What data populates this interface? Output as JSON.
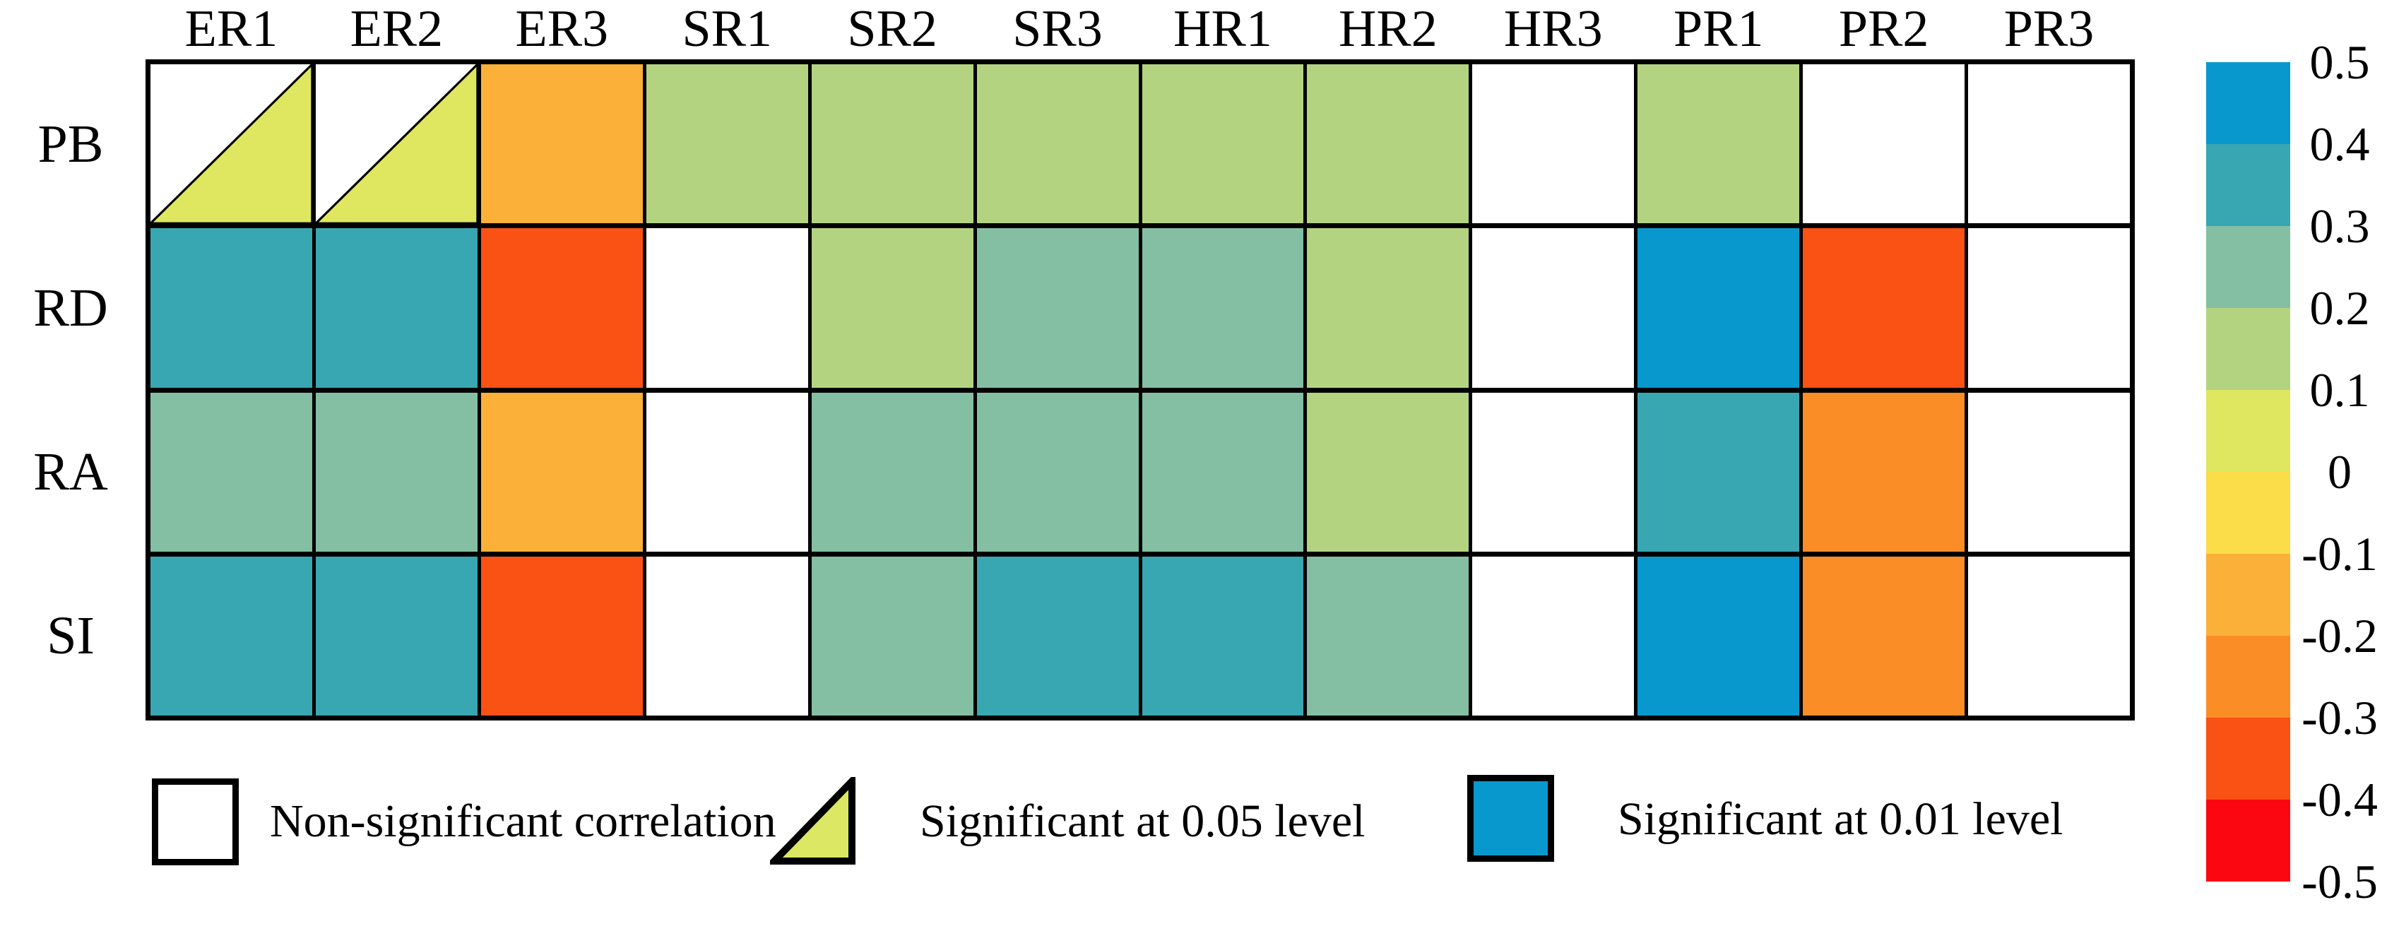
{
  "figure": {
    "description": "Correlation significance heatmap of row variables vs column variables"
  },
  "colors": {
    "background": "#FFFFFF",
    "border": "#000000",
    "non_significant_fill": "#FFFFFF",
    "triangle_fill": "#DCE763",
    "legend_significant_01_fill": "#0898CE"
  },
  "chart_data": {
    "type": "heatmap",
    "columns": [
      "ER1",
      "ER2",
      "ER3",
      "SR1",
      "SR2",
      "SR3",
      "HR1",
      "HR2",
      "HR3",
      "PR1",
      "PR2",
      "PR3"
    ],
    "rows": [
      "PB",
      "RD",
      "RA",
      "SI"
    ],
    "cells": [
      [
        {
          "value": 0.05,
          "significance": "0.05"
        },
        {
          "value": 0.05,
          "significance": "0.05"
        },
        {
          "value": -0.15,
          "significance": "0.01"
        },
        {
          "value": 0.15,
          "significance": "0.01"
        },
        {
          "value": 0.15,
          "significance": "0.01"
        },
        {
          "value": 0.15,
          "significance": "0.01"
        },
        {
          "value": 0.15,
          "significance": "0.01"
        },
        {
          "value": 0.15,
          "significance": "0.01"
        },
        {
          "value": null,
          "significance": "ns"
        },
        {
          "value": 0.15,
          "significance": "0.01"
        },
        {
          "value": null,
          "significance": "ns"
        },
        {
          "value": null,
          "significance": "ns"
        }
      ],
      [
        {
          "value": 0.35,
          "significance": "0.01"
        },
        {
          "value": 0.35,
          "significance": "0.01"
        },
        {
          "value": -0.35,
          "significance": "0.01"
        },
        {
          "value": null,
          "significance": "ns"
        },
        {
          "value": 0.15,
          "significance": "0.01"
        },
        {
          "value": 0.25,
          "significance": "0.01"
        },
        {
          "value": 0.25,
          "significance": "0.01"
        },
        {
          "value": 0.15,
          "significance": "0.01"
        },
        {
          "value": null,
          "significance": "ns"
        },
        {
          "value": 0.45,
          "significance": "0.01"
        },
        {
          "value": -0.35,
          "significance": "0.01"
        },
        {
          "value": null,
          "significance": "ns"
        }
      ],
      [
        {
          "value": 0.25,
          "significance": "0.01"
        },
        {
          "value": 0.25,
          "significance": "0.01"
        },
        {
          "value": -0.15,
          "significance": "0.01"
        },
        {
          "value": null,
          "significance": "ns"
        },
        {
          "value": 0.25,
          "significance": "0.01"
        },
        {
          "value": 0.25,
          "significance": "0.01"
        },
        {
          "value": 0.25,
          "significance": "0.01"
        },
        {
          "value": 0.15,
          "significance": "0.01"
        },
        {
          "value": null,
          "significance": "ns"
        },
        {
          "value": 0.35,
          "significance": "0.01"
        },
        {
          "value": -0.25,
          "significance": "0.01"
        },
        {
          "value": null,
          "significance": "ns"
        }
      ],
      [
        {
          "value": 0.35,
          "significance": "0.01"
        },
        {
          "value": 0.35,
          "significance": "0.01"
        },
        {
          "value": -0.35,
          "significance": "0.01"
        },
        {
          "value": null,
          "significance": "ns"
        },
        {
          "value": 0.25,
          "significance": "0.01"
        },
        {
          "value": 0.35,
          "significance": "0.01"
        },
        {
          "value": 0.35,
          "significance": "0.01"
        },
        {
          "value": 0.25,
          "significance": "0.01"
        },
        {
          "value": null,
          "significance": "ns"
        },
        {
          "value": 0.45,
          "significance": "0.01"
        },
        {
          "value": -0.25,
          "significance": "0.01"
        },
        {
          "value": null,
          "significance": "ns"
        }
      ]
    ],
    "value_scale": {
      "min": -0.5,
      "max": 0.5,
      "step": 0.1
    },
    "colorbar_ticks": [
      "0.5",
      "0.4",
      "0.3",
      "0.2",
      "0.1",
      "0",
      "-0.1",
      "-0.2",
      "-0.3",
      "-0.4",
      "-0.5"
    ],
    "palette_top_to_bottom": [
      "#0898CE",
      "#38A7B1",
      "#84BFA3",
      "#B4D381",
      "#DEE75F",
      "#FBDC49",
      "#FBB039",
      "#FB8D27",
      "#FA5114",
      "#FA0712"
    ],
    "legend": [
      {
        "swatch": "white-square",
        "label": "Non-significant correlation"
      },
      {
        "swatch": "yellow-green-triangle",
        "label": "Significant at 0.05 level"
      },
      {
        "swatch": "blue-square",
        "label": "Significant at 0.01 level"
      }
    ],
    "legend_position": "bottom",
    "grid": true
  }
}
